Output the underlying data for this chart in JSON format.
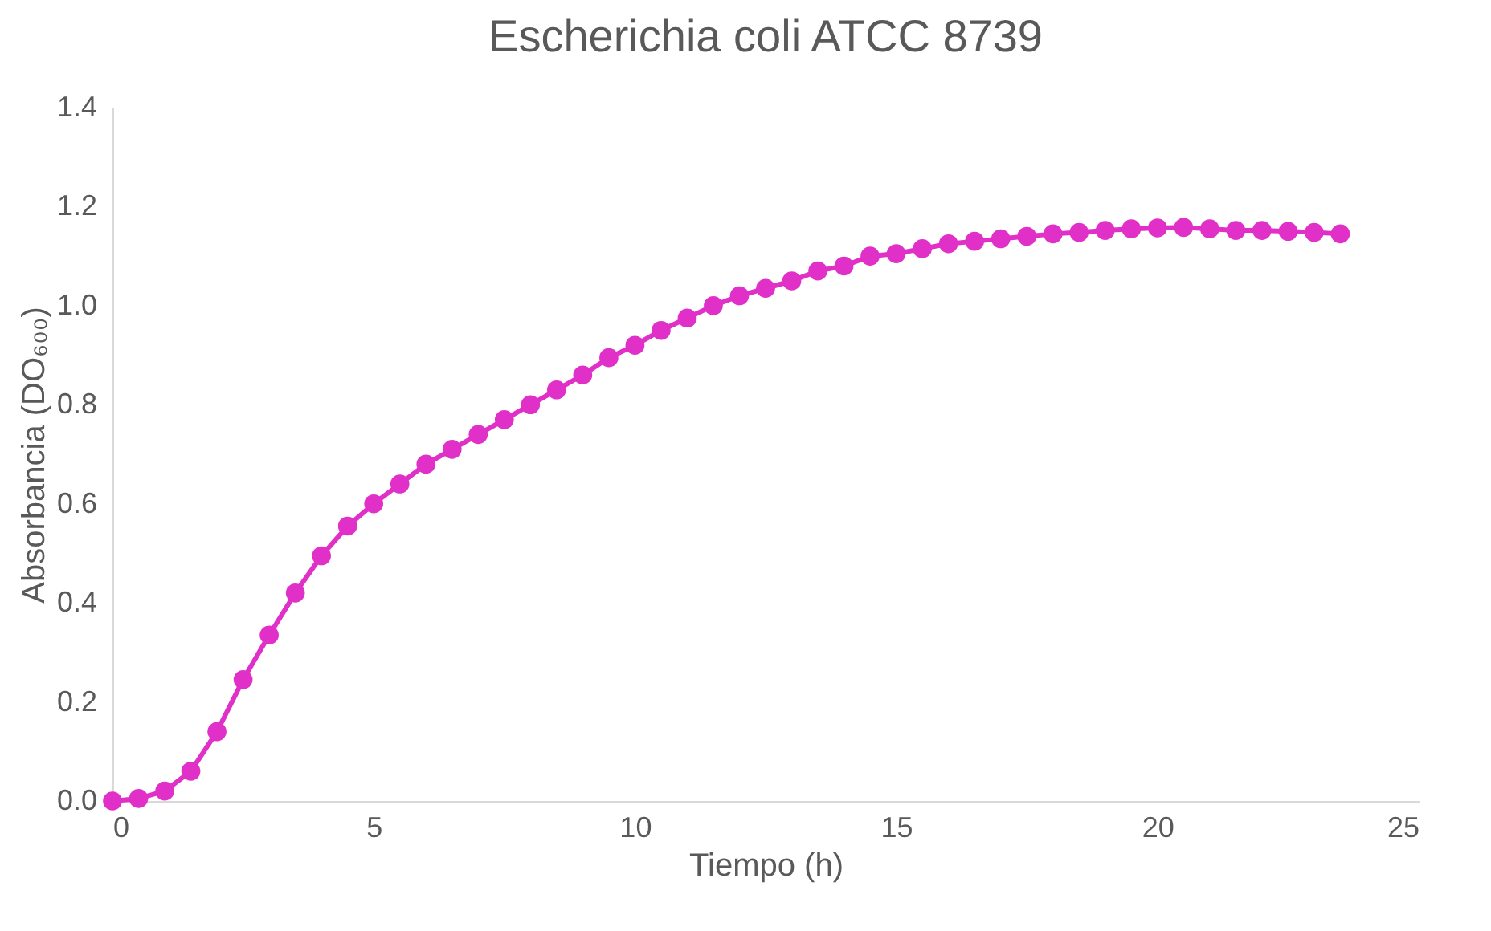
{
  "chart_data": {
    "type": "line",
    "title": "Escherichia coli  ATCC 8739",
    "xlabel": "Tiempo (h)",
    "ylabel": "Absorbancia (DO₆₀₀)",
    "x": [
      0,
      0.5,
      1,
      1.5,
      2,
      2.5,
      3,
      3.5,
      4,
      4.5,
      5,
      5.5,
      6,
      6.5,
      7,
      7.5,
      8,
      8.5,
      9,
      9.5,
      10,
      10.5,
      11,
      11.5,
      12,
      12.5,
      13,
      13.5,
      14,
      14.5,
      15,
      15.5,
      16,
      16.5,
      17,
      17.5,
      18,
      18.5,
      19,
      19.5,
      20,
      20.5,
      21,
      21.5,
      22,
      22.5,
      23,
      23.5
    ],
    "series": [
      {
        "color": "#e030c8",
        "values": [
          0,
          0.005,
          0.02,
          0.06,
          0.14,
          0.245,
          0.335,
          0.42,
          0.495,
          0.555,
          0.6,
          0.64,
          0.68,
          0.71,
          0.74,
          0.77,
          0.8,
          0.83,
          0.86,
          0.895,
          0.92,
          0.95,
          0.975,
          1.0,
          1.02,
          1.035,
          1.05,
          1.07,
          1.08,
          1.1,
          1.105,
          1.115,
          1.125,
          1.13,
          1.135,
          1.14,
          1.145,
          1.148,
          1.152,
          1.155,
          1.157,
          1.158,
          1.155,
          1.152,
          1.152,
          1.15,
          1.148,
          1.145
        ]
      }
    ],
    "xlim": [
      0,
      25
    ],
    "xticks": [
      0,
      5,
      10,
      15,
      20,
      25
    ],
    "ylim": [
      0,
      1.4
    ],
    "yticks": [
      {
        "value": 0,
        "label": "0.0"
      },
      0.2,
      0.4,
      0.6,
      0.8,
      {
        "value": 1,
        "label": "1.0"
      },
      1.2,
      1.4
    ],
    "grid": false,
    "legend": false,
    "marker": "circle",
    "line_style": "solid"
  }
}
